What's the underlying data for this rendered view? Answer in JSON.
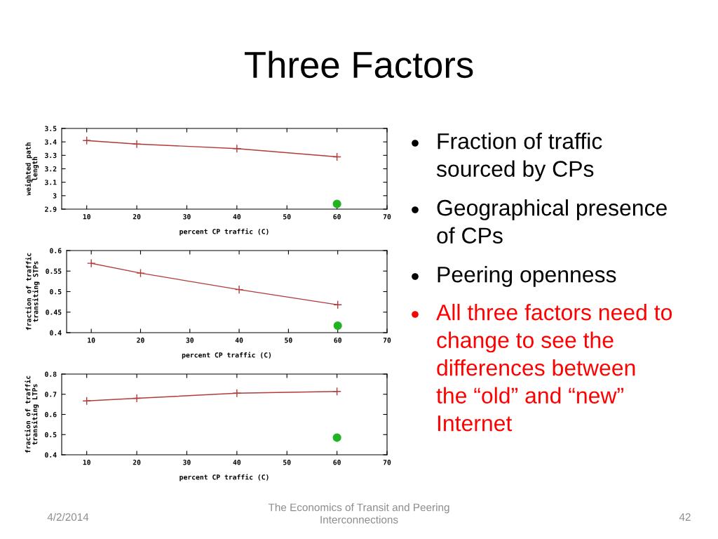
{
  "chart_data": [
    {
      "type": "line",
      "xlabel": "percent CP traffic (C)",
      "ylabel": "weighted path\nlength",
      "xlim": [
        5,
        70
      ],
      "xticks": [
        10,
        20,
        30,
        40,
        50,
        60,
        70
      ],
      "ylim": [
        2.9,
        3.5
      ],
      "yticks": [
        2.9,
        3,
        3.1,
        3.2,
        3.3,
        3.4,
        3.5
      ],
      "series": [
        {
          "type": "line",
          "color": "#b23a3a",
          "marker": "cross",
          "x": [
            10,
            20,
            40,
            60
          ],
          "values": [
            3.41,
            3.384,
            3.35,
            3.289
          ]
        },
        {
          "type": "scatter",
          "color": "#22b322",
          "marker": "circle",
          "x": [
            60
          ],
          "values": [
            2.939
          ]
        }
      ]
    },
    {
      "type": "line",
      "xlabel": "percent CP traffic (C)",
      "ylabel": "fraction of traffic\ntransiting STPs",
      "xlim": [
        5,
        70
      ],
      "xticks": [
        10,
        20,
        30,
        40,
        50,
        60,
        70
      ],
      "ylim": [
        0.4,
        0.6
      ],
      "yticks": [
        0.4,
        0.45,
        0.5,
        0.55,
        0.6
      ],
      "series": [
        {
          "type": "line",
          "color": "#b23a3a",
          "marker": "cross",
          "x": [
            10,
            20,
            40,
            60
          ],
          "values": [
            0.569,
            0.545,
            0.505,
            0.468
          ]
        },
        {
          "type": "scatter",
          "color": "#22b322",
          "marker": "circle",
          "x": [
            60
          ],
          "values": [
            0.417
          ]
        }
      ]
    },
    {
      "type": "line",
      "xlabel": "percent CP traffic (C)",
      "ylabel": "fraction of traffic\ntransiting LTPs",
      "xlim": [
        5,
        70
      ],
      "xticks": [
        10,
        20,
        30,
        40,
        50,
        60,
        70
      ],
      "ylim": [
        0.4,
        0.8
      ],
      "yticks": [
        0.4,
        0.5,
        0.6,
        0.7,
        0.8
      ],
      "series": [
        {
          "type": "line",
          "color": "#b23a3a",
          "marker": "cross",
          "x": [
            10,
            20,
            40,
            60
          ],
          "values": [
            0.667,
            0.68,
            0.705,
            0.714
          ]
        },
        {
          "type": "scatter",
          "color": "#22b322",
          "marker": "circle",
          "x": [
            60
          ],
          "values": [
            0.485
          ]
        }
      ],
      "annotations": [
        "4/2/2014",
        "The Economics of Transit and Peering\nInterconnections",
        "42"
      ]
    },
    {
      "type": "other",
      "title": "Three Factors",
      "annotations": [
        "Fraction of traffic\nsourced by CPs",
        "Geographical presence\nof CPs",
        "Peering openness",
        "All three factors need to\nchange to see the\ndifferences between\nthe “old” and “new”\nInternet"
      ],
      "colors": [
        "#000000",
        "#000000",
        "#000000",
        "#ff0000"
      ]
    }
  ]
}
